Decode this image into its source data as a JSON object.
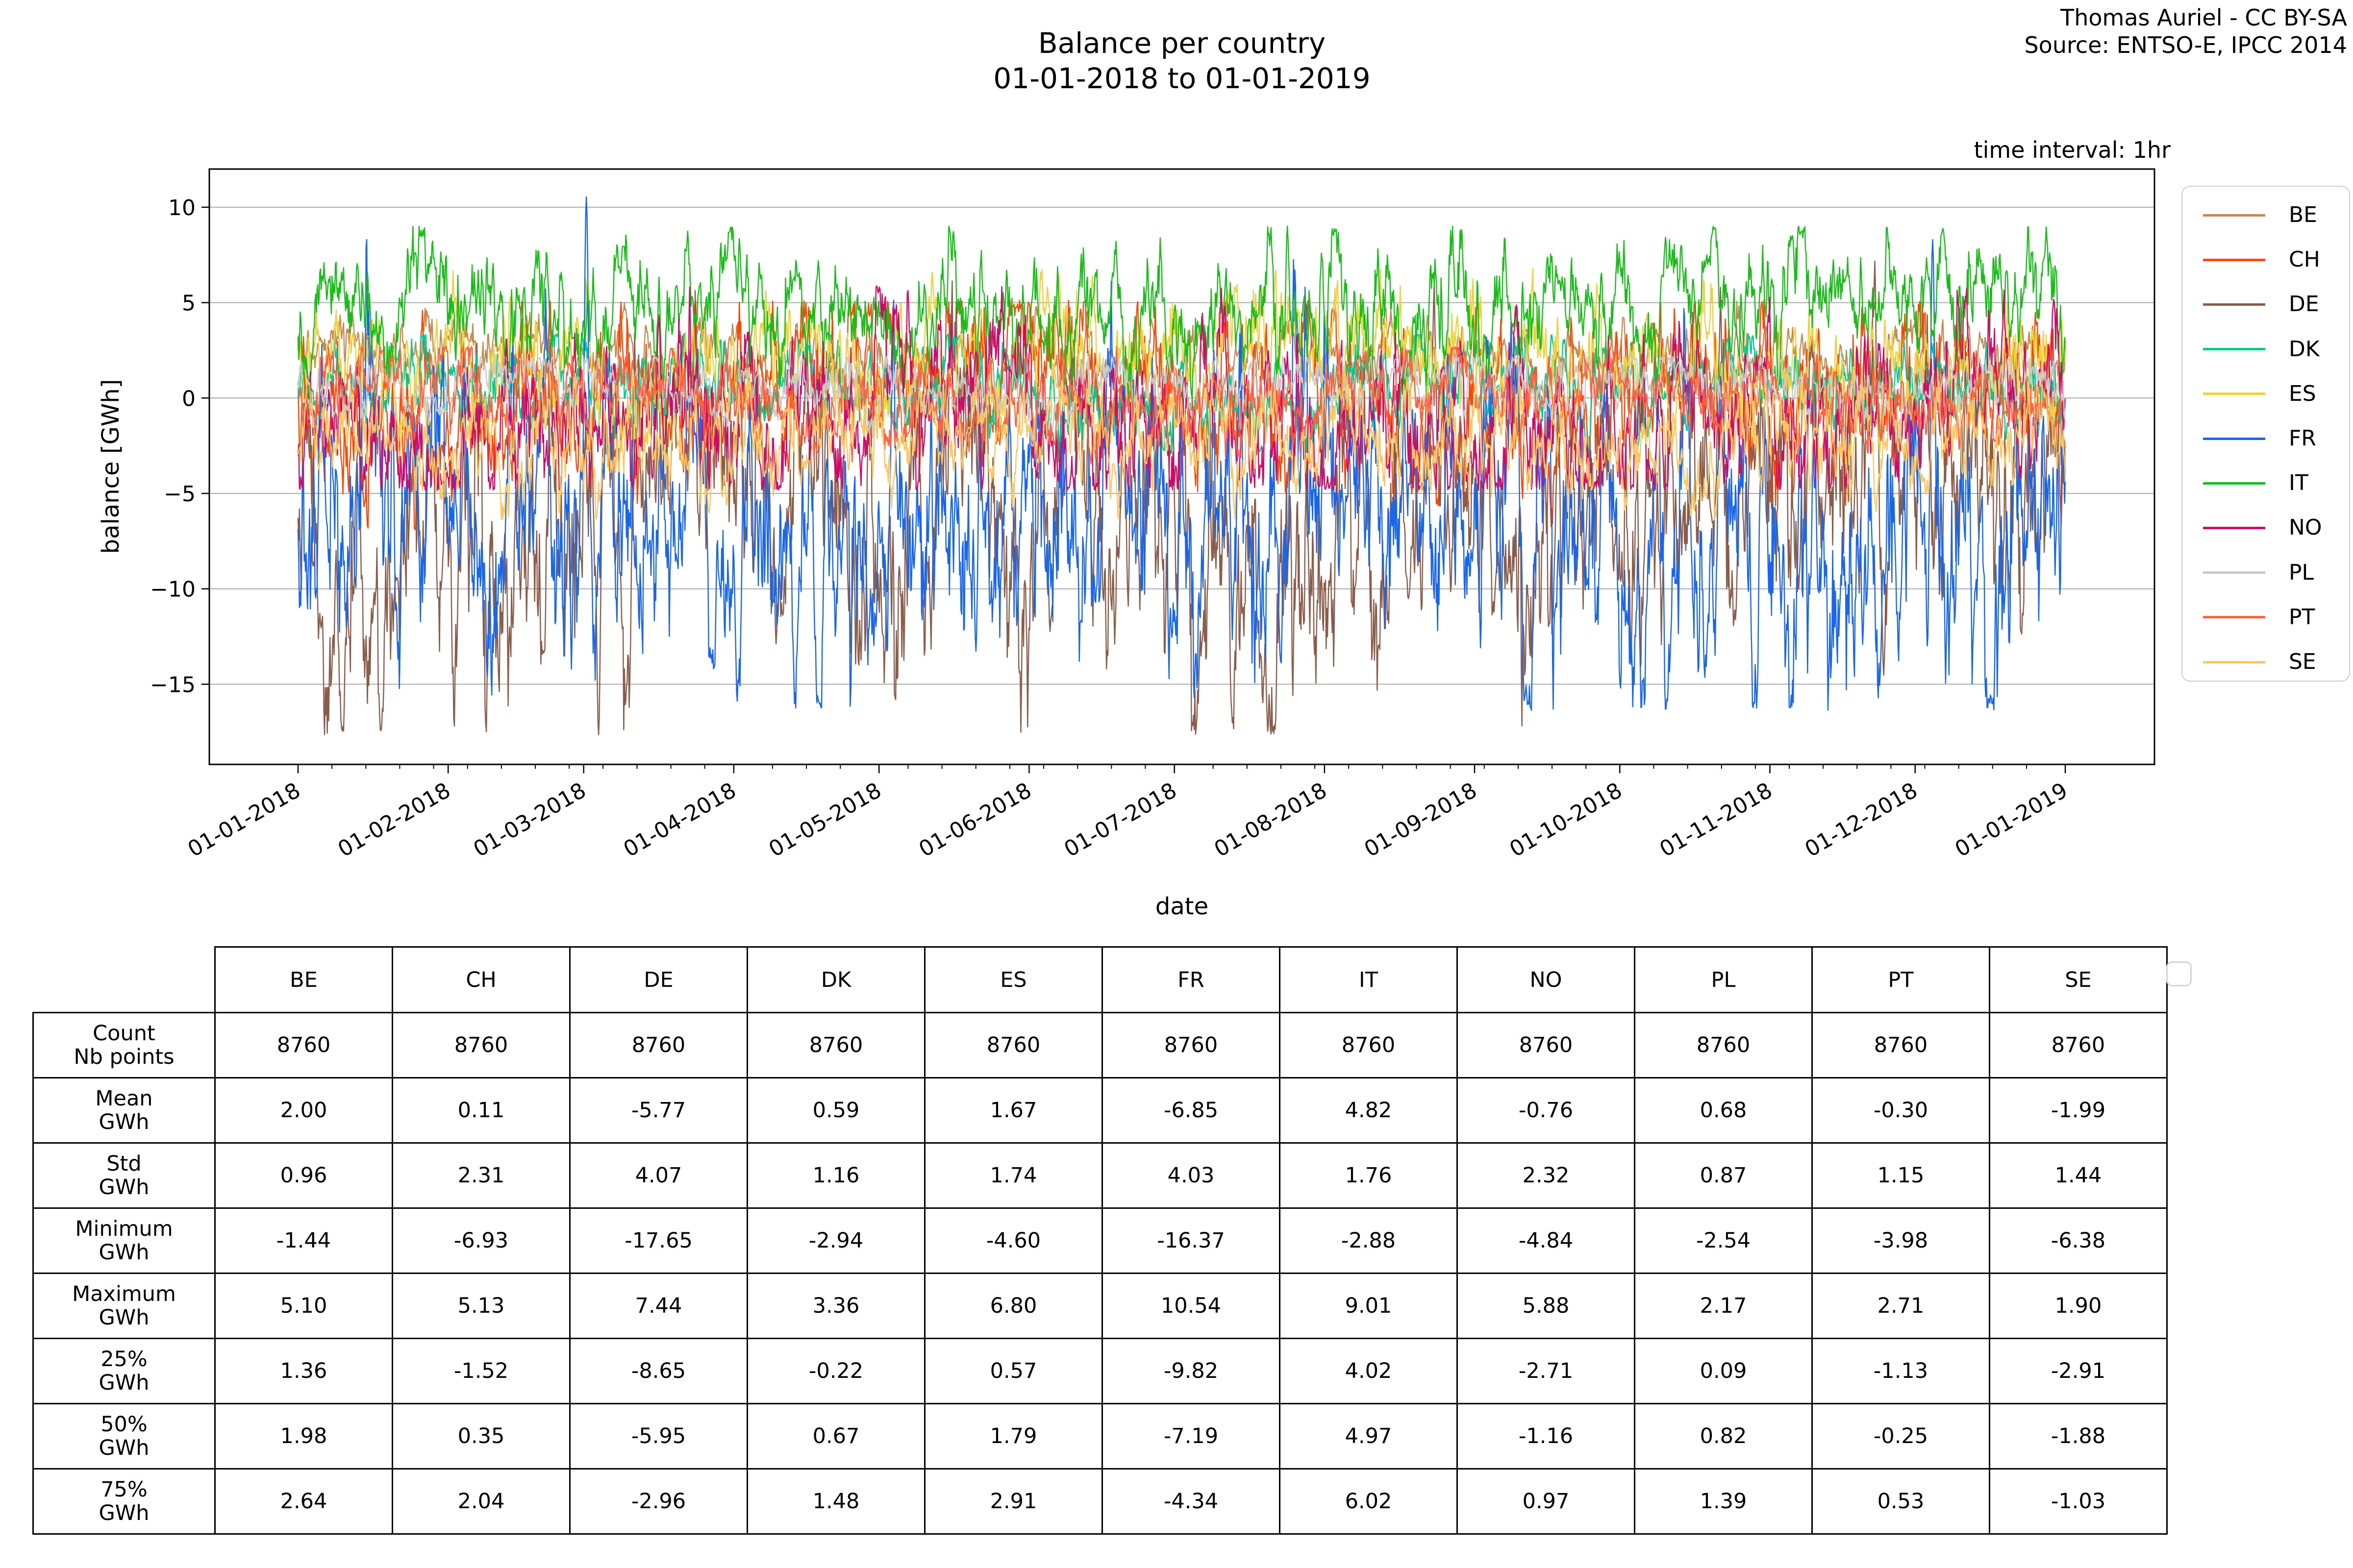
{
  "title": {
    "line1": "Balance per country",
    "line2": "01-01-2018 to 01-01-2019"
  },
  "attribution": {
    "line1": "Thomas Auriel - CC BY-SA",
    "line2": "Source: ENTSO-E, IPCC 2014"
  },
  "annotation": {
    "time_interval": "time interval: 1hr"
  },
  "axes": {
    "xlabel": "date",
    "ylabel": "balance [GWh]",
    "ytick_labels": [
      "10",
      "5",
      "0",
      "−5",
      "−10",
      "−15"
    ],
    "xtick_labels": [
      "01-01-2018",
      "01-02-2018",
      "01-03-2018",
      "01-04-2018",
      "01-05-2018",
      "01-06-2018",
      "01-07-2018",
      "01-08-2018",
      "01-09-2018",
      "01-10-2018",
      "01-11-2018",
      "01-12-2018",
      "01-01-2019"
    ]
  },
  "chart_data": {
    "type": "line",
    "title": "Balance per country 01-01-2018 to 01-01-2019",
    "xlabel": "date",
    "ylabel": "balance [GWh]",
    "x_start": "01-01-2018",
    "x_end": "01-01-2019",
    "points_per_series": 8760,
    "time_interval": "1hr",
    "ylim": [
      -19.2,
      12.0
    ],
    "yticks": [
      10,
      5,
      0,
      -5,
      -10,
      -15
    ],
    "grid": "horizontal-only",
    "legend_position": "right",
    "month_day_offsets": [
      0,
      31,
      59,
      90,
      120,
      151,
      181,
      212,
      243,
      273,
      304,
      334,
      365
    ],
    "series": [
      {
        "name": "BE",
        "color": "#c68a4f",
        "mean": 2.0,
        "std": 0.96,
        "min": -1.44,
        "max": 5.1,
        "q25": 1.36,
        "q50": 1.98,
        "q75": 2.64
      },
      {
        "name": "CH",
        "color": "#ff4500",
        "mean": 0.11,
        "std": 2.31,
        "min": -6.93,
        "max": 5.13,
        "q25": -1.52,
        "q50": 0.35,
        "q75": 2.04
      },
      {
        "name": "DE",
        "color": "#8b5c4a",
        "mean": -5.77,
        "std": 4.07,
        "min": -17.65,
        "max": 7.44,
        "q25": -8.65,
        "q50": -5.95,
        "q75": -2.96
      },
      {
        "name": "DK",
        "color": "#00cc8f",
        "mean": 0.59,
        "std": 1.16,
        "min": -2.94,
        "max": 3.36,
        "q25": -0.22,
        "q50": 0.67,
        "q75": 1.48
      },
      {
        "name": "ES",
        "color": "#efd13e",
        "mean": 1.67,
        "std": 1.74,
        "min": -4.6,
        "max": 6.8,
        "q25": 0.57,
        "q50": 1.79,
        "q75": 2.91
      },
      {
        "name": "FR",
        "color": "#1766f0",
        "mean": -6.85,
        "std": 4.03,
        "min": -16.37,
        "max": 10.54,
        "q25": -9.82,
        "q50": -7.19,
        "q75": -4.34
      },
      {
        "name": "IT",
        "color": "#15bf15",
        "mean": 4.82,
        "std": 1.76,
        "min": -2.88,
        "max": 9.01,
        "q25": 4.02,
        "q50": 4.97,
        "q75": 6.02
      },
      {
        "name": "NO",
        "color": "#cf0a6b",
        "mean": -0.76,
        "std": 2.32,
        "min": -4.84,
        "max": 5.88,
        "q25": -2.71,
        "q50": -1.16,
        "q75": 0.97
      },
      {
        "name": "PL",
        "color": "#c9c9c9",
        "mean": 0.68,
        "std": 0.87,
        "min": -2.54,
        "max": 2.17,
        "q25": 0.09,
        "q50": 0.82,
        "q75": 1.39
      },
      {
        "name": "PT",
        "color": "#ff6240",
        "mean": -0.3,
        "std": 1.15,
        "min": -3.98,
        "max": 2.71,
        "q25": -1.13,
        "q50": -0.25,
        "q75": 0.53
      },
      {
        "name": "SE",
        "color": "#ffc55e",
        "mean": -1.99,
        "std": 1.44,
        "min": -6.38,
        "max": 1.9,
        "q25": -2.91,
        "q50": -1.88,
        "q75": -1.03
      }
    ],
    "notable_extremes": [
      {
        "series": "FR",
        "t": 0.163,
        "value": 10.54,
        "width": 5
      },
      {
        "series": "FR",
        "t": 0.925,
        "value": 8.3,
        "width": 4
      },
      {
        "series": "DE",
        "t": 0.17,
        "value": -17.65,
        "width": 4
      },
      {
        "series": "IT",
        "t": 0.56,
        "value": 9.01,
        "width": 3
      }
    ]
  },
  "table": {
    "col_headers": [
      "BE",
      "CH",
      "DE",
      "DK",
      "ES",
      "FR",
      "IT",
      "NO",
      "PL",
      "PT",
      "SE"
    ],
    "rows": [
      {
        "label": [
          "Count",
          "Nb points"
        ],
        "values": [
          "8760",
          "8760",
          "8760",
          "8760",
          "8760",
          "8760",
          "8760",
          "8760",
          "8760",
          "8760",
          "8760"
        ]
      },
      {
        "label": [
          "Mean",
          "GWh"
        ],
        "values": [
          "2.00",
          "0.11",
          "-5.77",
          "0.59",
          "1.67",
          "-6.85",
          "4.82",
          "-0.76",
          "0.68",
          "-0.30",
          "-1.99"
        ]
      },
      {
        "label": [
          "Std",
          "GWh"
        ],
        "values": [
          "0.96",
          "2.31",
          "4.07",
          "1.16",
          "1.74",
          "4.03",
          "1.76",
          "2.32",
          "0.87",
          "1.15",
          "1.44"
        ]
      },
      {
        "label": [
          "Minimum",
          "GWh"
        ],
        "values": [
          "-1.44",
          "-6.93",
          "-17.65",
          "-2.94",
          "-4.60",
          "-16.37",
          "-2.88",
          "-4.84",
          "-2.54",
          "-3.98",
          "-6.38"
        ]
      },
      {
        "label": [
          "Maximum",
          "GWh"
        ],
        "values": [
          "5.10",
          "5.13",
          "7.44",
          "3.36",
          "6.80",
          "10.54",
          "9.01",
          "5.88",
          "2.17",
          "2.71",
          "1.90"
        ]
      },
      {
        "label": [
          "25%",
          "GWh"
        ],
        "values": [
          "1.36",
          "-1.52",
          "-8.65",
          "-0.22",
          "0.57",
          "-9.82",
          "4.02",
          "-2.71",
          "0.09",
          "-1.13",
          "-2.91"
        ]
      },
      {
        "label": [
          "50%",
          "GWh"
        ],
        "values": [
          "1.98",
          "0.35",
          "-5.95",
          "0.67",
          "1.79",
          "-7.19",
          "4.97",
          "-1.16",
          "0.82",
          "-0.25",
          "-1.88"
        ]
      },
      {
        "label": [
          "75%",
          "GWh"
        ],
        "values": [
          "2.64",
          "2.04",
          "-2.96",
          "1.48",
          "2.91",
          "-4.34",
          "6.02",
          "0.97",
          "1.39",
          "0.53",
          "-1.03"
        ]
      }
    ]
  }
}
